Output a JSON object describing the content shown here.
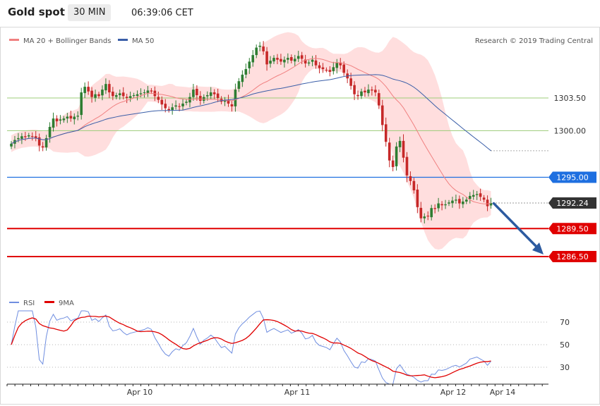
{
  "header": {
    "title": "Gold spot",
    "interval": "30 MIN",
    "time": "06:39:06 CET"
  },
  "legend": {
    "ma20_label": "MA 20 + Bollinger Bands",
    "ma50_label": "MA 50",
    "credit": "Research © 2019 Trading Central",
    "rsi_label": "RSI",
    "rsi_ma_label": "9MA"
  },
  "colors": {
    "up": "#2e7d32",
    "down": "#c62828",
    "bands_fill": "#ffdede",
    "ma20": "#f08080",
    "ma50": "#3a5ea8",
    "rsi": "#6f8ee0",
    "rsi_ma": "#e00000",
    "support": "#e00000",
    "pivot": "#1e6fe0",
    "resist": "#8dc66b",
    "arrow": "#2c5aa0"
  },
  "chart_data": [
    {
      "type": "candlestick",
      "title": "Gold spot",
      "ylim": [
        1284.2,
        1311.2
      ],
      "levels": [
        {
          "label": "1303.50",
          "value": 1303.5,
          "style": "light-green"
        },
        {
          "label": "1300.00",
          "value": 1300.0,
          "style": "light-green"
        },
        {
          "label": "1295.00",
          "value": 1295.0,
          "style": "blue"
        },
        {
          "label": "1289.50",
          "value": 1289.5,
          "style": "red"
        },
        {
          "label": "1286.50",
          "value": 1286.5,
          "style": "red"
        }
      ],
      "last_price": {
        "label": "1292.24",
        "value": 1292.24
      },
      "x_ticks": [
        "Apr 10",
        "Apr 11",
        "Apr 12",
        "Apr 14"
      ],
      "close": [
        1298.6,
        1299.0,
        1299.2,
        1299.4,
        1299.3,
        1299.5,
        1299.4,
        1299.2,
        1298.4,
        1298.2,
        1299.2,
        1300.4,
        1301.3,
        1301.0,
        1301.2,
        1301.3,
        1301.5,
        1301.3,
        1301.5,
        1301.6,
        1304.1,
        1304.7,
        1304.2,
        1303.6,
        1303.9,
        1303.7,
        1304.4,
        1305.0,
        1304.1,
        1303.7,
        1303.8,
        1304.0,
        1303.7,
        1303.5,
        1303.7,
        1303.8,
        1303.9,
        1304.0,
        1304.1,
        1304.3,
        1304.2,
        1303.7,
        1303.3,
        1302.8,
        1302.4,
        1302.2,
        1302.5,
        1302.7,
        1302.6,
        1302.9,
        1303.1,
        1303.6,
        1304.4,
        1303.8,
        1303.2,
        1303.6,
        1303.8,
        1304.1,
        1303.9,
        1303.5,
        1303.1,
        1303.2,
        1302.9,
        1302.6,
        1304.4,
        1305.3,
        1306.0,
        1306.6,
        1307.4,
        1308.1,
        1308.9,
        1309.1,
        1308.5,
        1307.1,
        1307.5,
        1307.8,
        1307.6,
        1307.4,
        1307.6,
        1307.8,
        1307.5,
        1307.7,
        1308.0,
        1307.7,
        1307.2,
        1307.3,
        1307.6,
        1307.0,
        1306.7,
        1306.6,
        1306.5,
        1306.3,
        1306.8,
        1307.3,
        1307.0,
        1306.2,
        1305.6,
        1304.8,
        1303.9,
        1303.7,
        1304.2,
        1304.1,
        1304.4,
        1304.3,
        1304.1,
        1302.7,
        1300.6,
        1298.8,
        1296.8,
        1296.1,
        1298.3,
        1298.9,
        1297.1,
        1295.2,
        1294.6,
        1293.6,
        1291.8,
        1290.6,
        1290.8,
        1290.8,
        1291.7,
        1291.6,
        1292.2,
        1292.0,
        1292.1,
        1292.3,
        1292.5,
        1292.6,
        1292.2,
        1292.4,
        1292.6,
        1293.0,
        1293.1,
        1293.2,
        1292.9,
        1292.6,
        1291.9,
        1292.24
      ],
      "open_high_low": "derived"
    },
    {
      "type": "line",
      "title": "",
      "ylim": [
        15,
        82
      ],
      "y_ticks": [
        30,
        50,
        70
      ],
      "series": [
        {
          "name": "RSI"
        },
        {
          "name": "9MA"
        }
      ]
    }
  ]
}
